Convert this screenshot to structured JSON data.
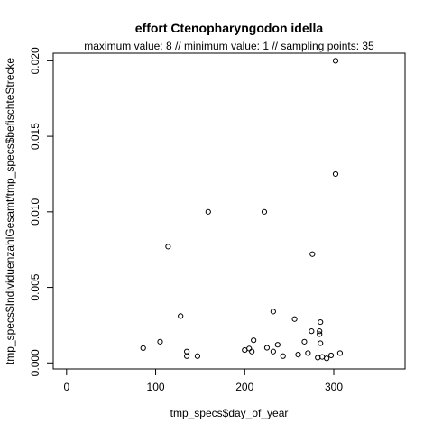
{
  "chart_data": {
    "type": "scatter",
    "title": "effort Ctenopharyngodon idella",
    "subtitle": "maximum value: 8  //  minimum value: 1  // sampling points: 35",
    "xlabel": "tmp_specs$day_of_year",
    "ylabel": "tmp_specs$IndividuenzahlGesamt/tmp_specs$befischteStrecke",
    "xlim": [
      -15,
      380
    ],
    "ylim": [
      -0.0004,
      0.0205
    ],
    "x_ticks": [
      0,
      100,
      200,
      300
    ],
    "x_tick_labels": [
      "0",
      "100",
      "200",
      "300"
    ],
    "y_ticks": [
      0.0,
      0.005,
      0.01,
      0.015,
      0.02
    ],
    "y_tick_labels": [
      "0.000",
      "0.005",
      "0.010",
      "0.015",
      "0.020"
    ],
    "grid": false,
    "legend": "none",
    "points": [
      {
        "x": 86,
        "y": 0.00098
      },
      {
        "x": 105,
        "y": 0.0014
      },
      {
        "x": 114,
        "y": 0.0077
      },
      {
        "x": 128,
        "y": 0.0031
      },
      {
        "x": 135,
        "y": 0.00075
      },
      {
        "x": 135,
        "y": 0.00045
      },
      {
        "x": 147,
        "y": 0.00045
      },
      {
        "x": 159,
        "y": 0.01
      },
      {
        "x": 200,
        "y": 0.00085
      },
      {
        "x": 205,
        "y": 0.00095
      },
      {
        "x": 208,
        "y": 0.00075
      },
      {
        "x": 210,
        "y": 0.0015
      },
      {
        "x": 222,
        "y": 0.01
      },
      {
        "x": 225,
        "y": 0.001
      },
      {
        "x": 232,
        "y": 0.0034
      },
      {
        "x": 232,
        "y": 0.00075
      },
      {
        "x": 237,
        "y": 0.0012
      },
      {
        "x": 243,
        "y": 0.00045
      },
      {
        "x": 256,
        "y": 0.0029
      },
      {
        "x": 260,
        "y": 0.00055
      },
      {
        "x": 267,
        "y": 0.0014
      },
      {
        "x": 271,
        "y": 0.00065
      },
      {
        "x": 275,
        "y": 0.0021
      },
      {
        "x": 276,
        "y": 0.0072
      },
      {
        "x": 282,
        "y": 0.00035
      },
      {
        "x": 284,
        "y": 0.0021
      },
      {
        "x": 284,
        "y": 0.0019
      },
      {
        "x": 285,
        "y": 0.0027
      },
      {
        "x": 285,
        "y": 0.0013
      },
      {
        "x": 287,
        "y": 0.0004
      },
      {
        "x": 292,
        "y": 0.0003
      },
      {
        "x": 297,
        "y": 0.0005
      },
      {
        "x": 302,
        "y": 0.0125
      },
      {
        "x": 302,
        "y": 0.02
      },
      {
        "x": 307,
        "y": 0.00065
      }
    ]
  }
}
